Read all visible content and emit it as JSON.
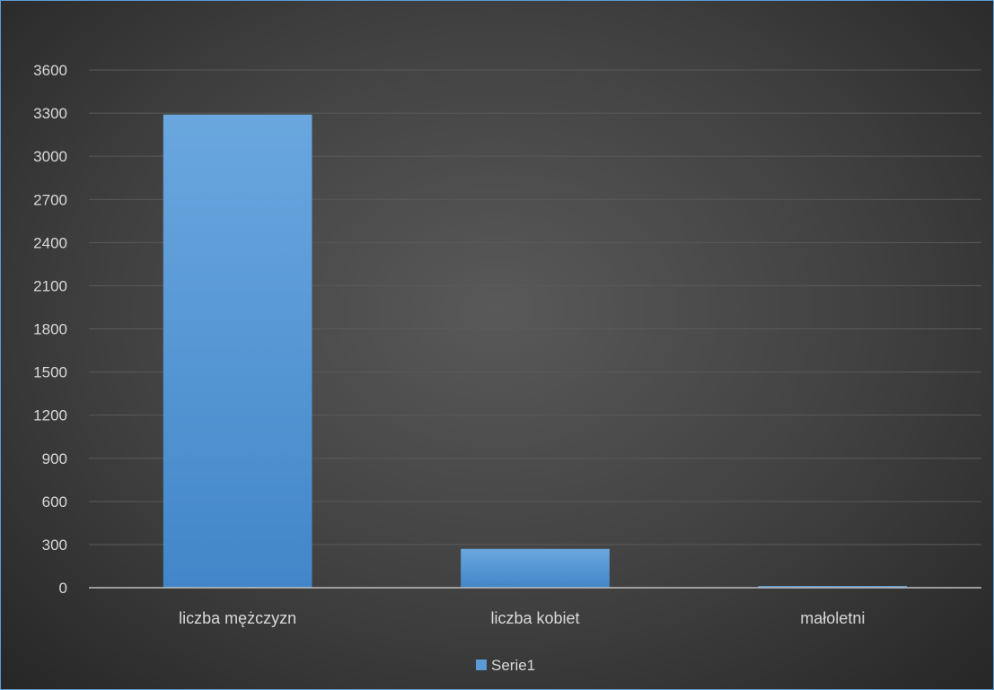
{
  "chart_data": {
    "type": "bar",
    "title": "",
    "xlabel": "",
    "ylabel": "",
    "categories": [
      "liczba mężczyzn",
      "liczba kobiet",
      "małoletni"
    ],
    "series": [
      {
        "name": "Serie1",
        "values": [
          3290,
          270,
          12
        ],
        "color": "#5b9bd5"
      }
    ],
    "ylim": [
      0,
      3600
    ],
    "yticks": [
      0,
      300,
      600,
      900,
      1200,
      1500,
      1800,
      2100,
      2400,
      2700,
      3000,
      3300,
      3600
    ],
    "grid": true,
    "legend": "bottom"
  }
}
